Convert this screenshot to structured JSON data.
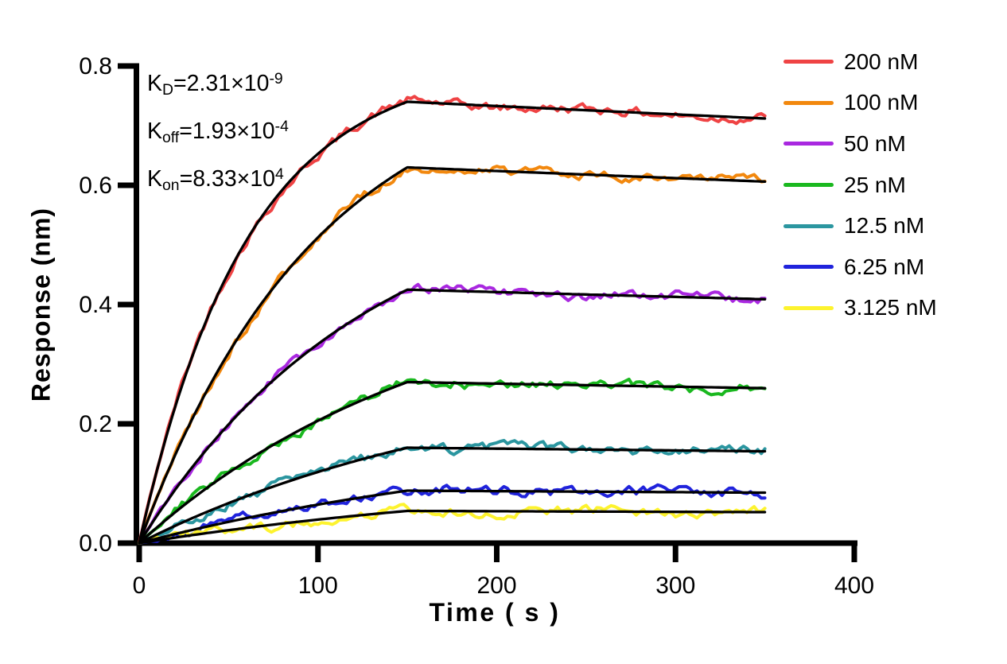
{
  "figure": {
    "background": "#FFFFFF"
  },
  "axes": {
    "x": {
      "title": "Time ( s )",
      "tick_labels": [
        "0",
        "100",
        "200",
        "300",
        "400"
      ],
      "range": [
        0,
        400
      ]
    },
    "y": {
      "title": "Response (nm)",
      "tick_labels": [
        "0.0",
        "0.2",
        "0.4",
        "0.6",
        "0.8"
      ],
      "range": [
        0,
        0.8
      ]
    }
  },
  "kinetics_annotation": {
    "lines": [
      {
        "symbol": "K",
        "subscript": "D",
        "value": "=2.31×10",
        "exponent": "-9"
      },
      {
        "symbol": "K",
        "subscript": "off",
        "value": "=1.93×10",
        "exponent": "-4"
      },
      {
        "symbol": "K",
        "subscript": "on",
        "value": "=8.33×10",
        "exponent": "4"
      }
    ]
  },
  "legend": {
    "items": [
      {
        "label": "200 nM",
        "color": "#EF4344"
      },
      {
        "label": "100 nM",
        "color": "#F2880E"
      },
      {
        "label": "50 nM",
        "color": "#A928E0"
      },
      {
        "label": "25 nM",
        "color": "#1AB81F"
      },
      {
        "label": "12.5 nM",
        "color": "#2B96A0"
      },
      {
        "label": "6.25 nM",
        "color": "#2023DC"
      },
      {
        "label": "3.125 nM",
        "color": "#FDF32E"
      }
    ]
  },
  "chart_data": {
    "type": "line",
    "title": "",
    "xlabel": "Time ( s )",
    "ylabel": "Response (nm)",
    "xlim": [
      0,
      400
    ],
    "ylim": [
      0,
      0.8
    ],
    "x_ticks": [
      0,
      100,
      200,
      300,
      400
    ],
    "y_ticks": [
      0.0,
      0.2,
      0.4,
      0.6,
      0.8
    ],
    "grid": false,
    "legend_position": "right",
    "association_end_s": 150,
    "trace_end_s": 350,
    "k_off_per_s": 0.000193,
    "fit_color": "#000000",
    "kinetic_constants": {
      "KD": "2.31×10-9",
      "Koff": "1.93×10-4",
      "Kon": "8.33×104"
    },
    "series": [
      {
        "name": "200 nM",
        "concentration_nM": 200,
        "color": "#EF4344",
        "response_at_150s": 0.74,
        "response_at_350s": 0.712,
        "k_obs_per_s": 0.0165
      },
      {
        "name": "100 nM",
        "concentration_nM": 100,
        "color": "#F2880E",
        "response_at_150s": 0.63,
        "response_at_350s": 0.606,
        "k_obs_per_s": 0.01
      },
      {
        "name": "50 nM",
        "concentration_nM": 50,
        "color": "#A928E0",
        "response_at_150s": 0.425,
        "response_at_350s": 0.409,
        "k_obs_per_s": 0.0078
      },
      {
        "name": "25 nM",
        "concentration_nM": 25,
        "color": "#1AB81F",
        "response_at_150s": 0.27,
        "response_at_350s": 0.26,
        "k_obs_per_s": 0.006
      },
      {
        "name": "12.5 nM",
        "concentration_nM": 12.5,
        "color": "#2B96A0",
        "response_at_150s": 0.16,
        "response_at_350s": 0.154,
        "k_obs_per_s": 0.005
      },
      {
        "name": "6.25 nM",
        "concentration_nM": 6.25,
        "color": "#2023DC",
        "response_at_150s": 0.088,
        "response_at_350s": 0.085,
        "k_obs_per_s": 0.0042
      },
      {
        "name": "3.125 nM",
        "concentration_nM": 3.125,
        "color": "#FDF32E",
        "response_at_150s": 0.054,
        "response_at_350s": 0.052,
        "k_obs_per_s": 0.004
      }
    ]
  }
}
